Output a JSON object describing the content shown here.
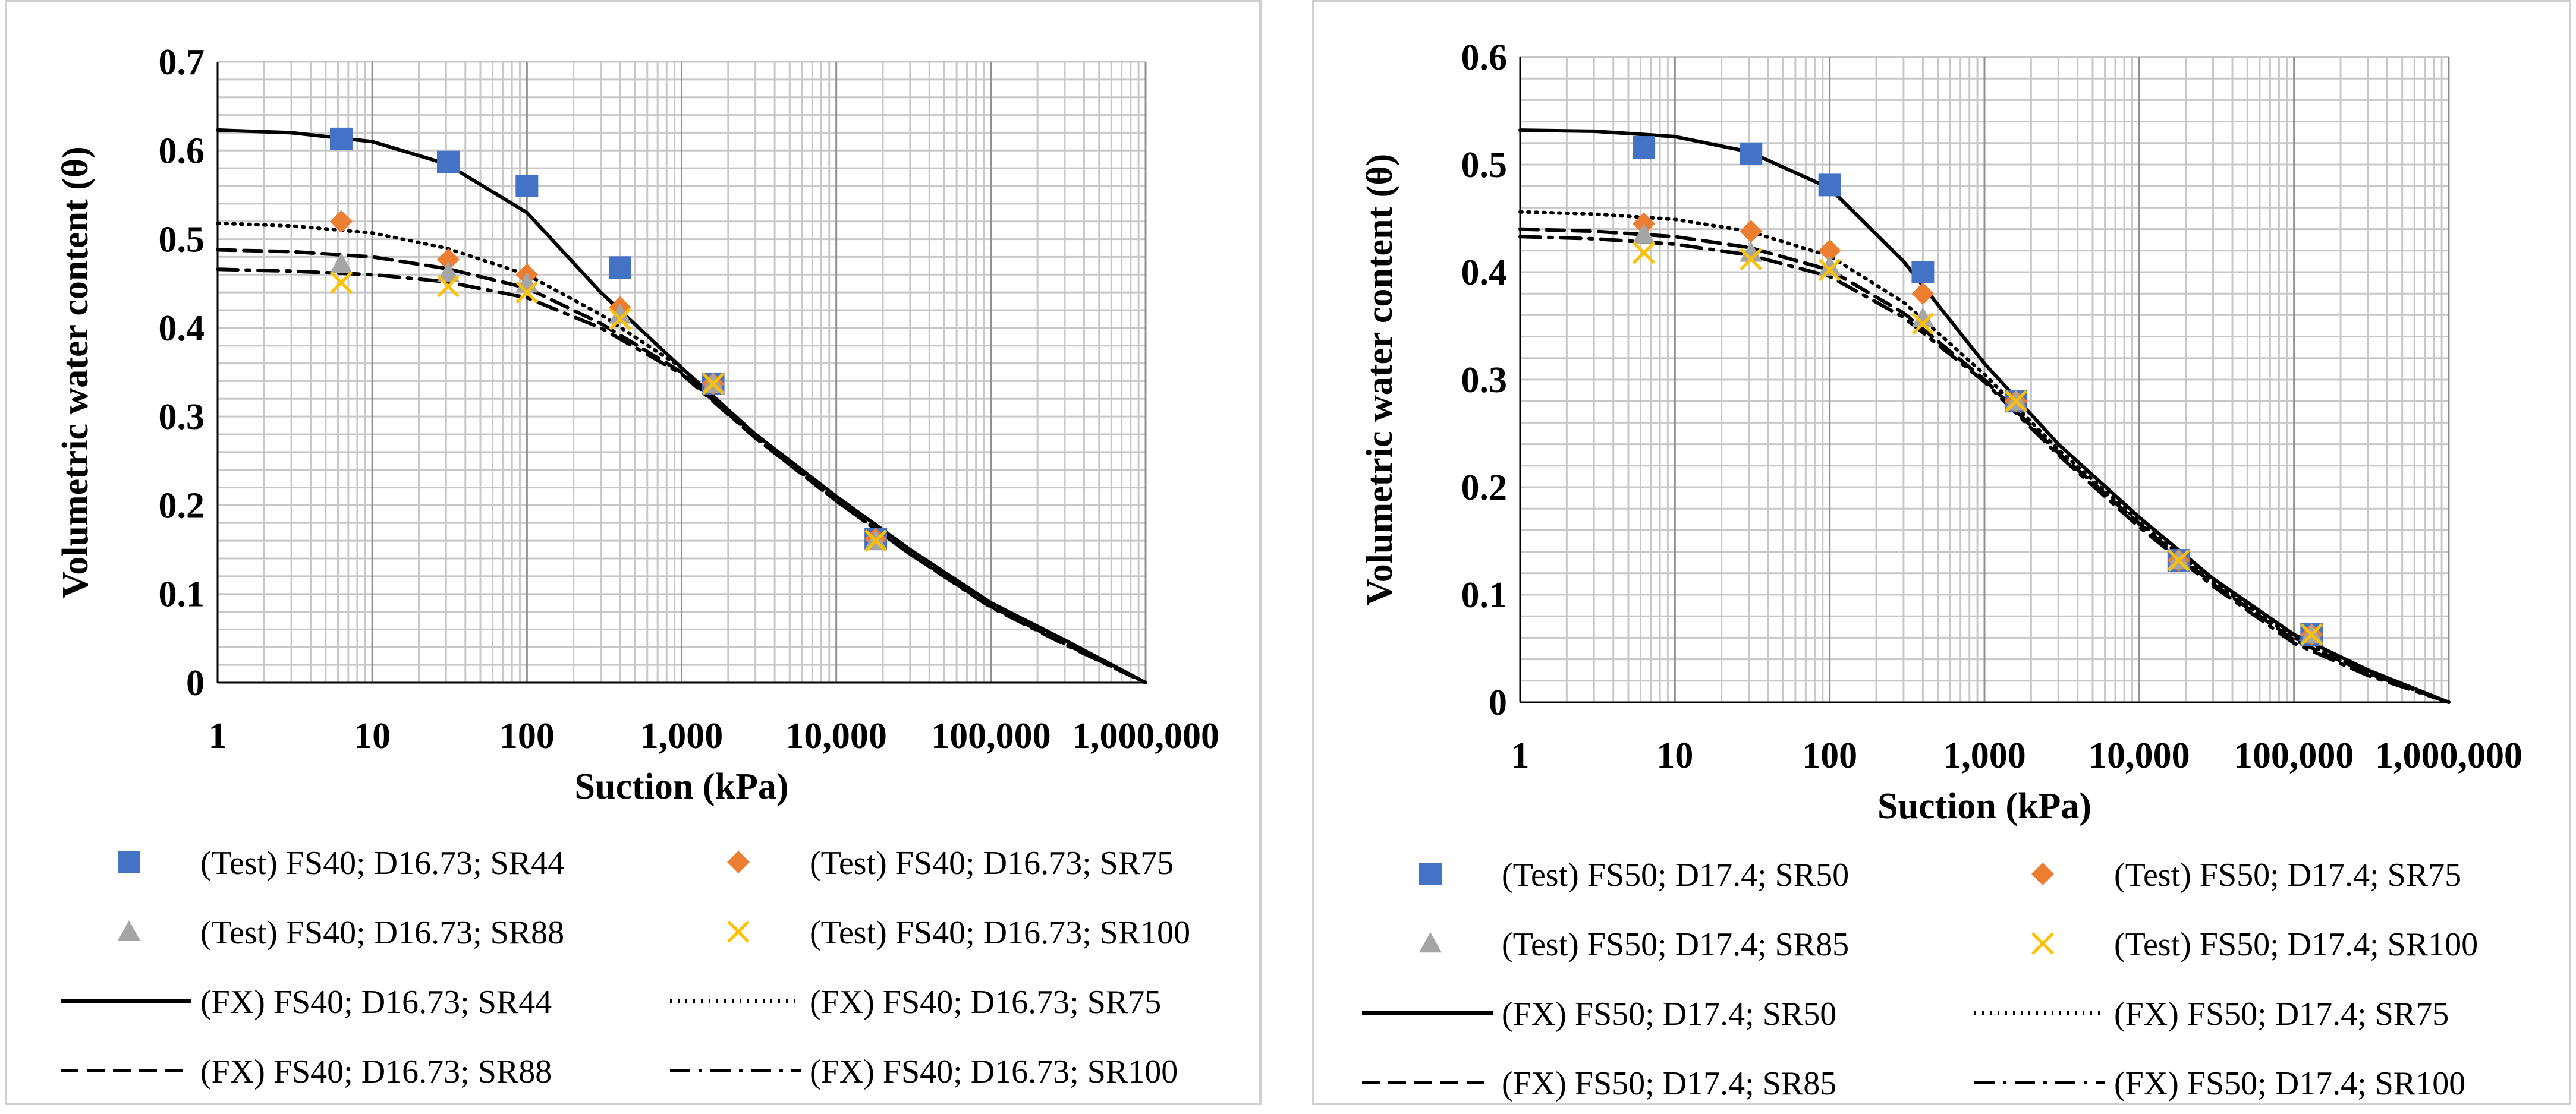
{
  "chart_data": [
    {
      "type": "scatter",
      "title": "",
      "xlabel": "Suction  (kPa)",
      "ylabel": "Volumetric water content (θ)",
      "xscale": "log",
      "xlim": [
        1,
        1000000
      ],
      "ylim": [
        0,
        0.7
      ],
      "xticks": [
        "1",
        "10",
        "100",
        "1,000",
        "10,000",
        "100,000",
        "1,000,000"
      ],
      "yticks": [
        "0",
        "0.1",
        "0.2",
        "0.3",
        "0.4",
        "0.5",
        "0.6",
        "0.7"
      ],
      "grid": true,
      "legend_position": "bottom",
      "series": [
        {
          "name": "(Test) FS40; D16.73; SR44",
          "kind": "marker",
          "marker": "square",
          "color": "#4472C4",
          "x": [
            6.3,
            31,
            100,
            400,
            1600,
            18000
          ],
          "y": [
            0.613,
            0.587,
            0.56,
            0.468,
            0.337,
            0.162
          ]
        },
        {
          "name": "(Test) FS40; D16.73; SR75",
          "kind": "marker",
          "marker": "diamond",
          "color": "#ED7D31",
          "x": [
            6.3,
            31,
            100,
            400,
            1600,
            18000
          ],
          "y": [
            0.52,
            0.477,
            0.46,
            0.423,
            0.337,
            0.162
          ]
        },
        {
          "name": "(Test) FS40; D16.73; SR88",
          "kind": "marker",
          "marker": "triangle",
          "color": "#A5A5A5",
          "x": [
            6.3,
            31,
            100,
            400,
            1600,
            18000
          ],
          "y": [
            0.472,
            0.462,
            0.45,
            0.415,
            0.337,
            0.16
          ]
        },
        {
          "name": "(Test) FS40; D16.73; SR100",
          "kind": "marker",
          "marker": "x",
          "color": "#FFC000",
          "x": [
            6.3,
            31,
            100,
            400,
            1600,
            18000
          ],
          "y": [
            0.451,
            0.447,
            0.44,
            0.41,
            0.337,
            0.16
          ]
        },
        {
          "name": "(FX) FS40; D16.73; SR44",
          "kind": "line",
          "dash": "solid",
          "color": "#000000",
          "x": [
            1,
            3,
            10,
            30,
            100,
            300,
            1000,
            3000,
            10000,
            30000,
            100000,
            300000,
            1000000
          ],
          "y": [
            0.623,
            0.62,
            0.61,
            0.585,
            0.53,
            0.44,
            0.355,
            0.28,
            0.21,
            0.15,
            0.09,
            0.048,
            0.0
          ]
        },
        {
          "name": "(FX) FS40; D16.73; SR75",
          "kind": "line",
          "dash": "dotted",
          "color": "#000000",
          "x": [
            1,
            3,
            10,
            30,
            100,
            300,
            1000,
            3000,
            10000,
            30000,
            100000,
            300000,
            1000000
          ],
          "y": [
            0.518,
            0.515,
            0.507,
            0.49,
            0.46,
            0.415,
            0.355,
            0.278,
            0.205,
            0.145,
            0.087,
            0.045,
            0.0
          ]
        },
        {
          "name": "(FX) FS40; D16.73; SR88",
          "kind": "line",
          "dash": "dashed",
          "color": "#000000",
          "x": [
            1,
            3,
            10,
            30,
            100,
            300,
            1000,
            3000,
            10000,
            30000,
            100000,
            300000,
            1000000
          ],
          "y": [
            0.488,
            0.486,
            0.48,
            0.467,
            0.445,
            0.405,
            0.35,
            0.276,
            0.205,
            0.145,
            0.086,
            0.044,
            0.0
          ]
        },
        {
          "name": "(FX) FS40; D16.73; SR100",
          "kind": "line",
          "dash": "dashdot",
          "color": "#000000",
          "x": [
            1,
            3,
            10,
            30,
            100,
            300,
            1000,
            3000,
            10000,
            30000,
            100000,
            300000,
            1000000
          ],
          "y": [
            0.466,
            0.464,
            0.46,
            0.452,
            0.434,
            0.4,
            0.348,
            0.276,
            0.205,
            0.145,
            0.085,
            0.043,
            0.0
          ]
        }
      ]
    },
    {
      "type": "scatter",
      "title": "",
      "xlabel": "Suction  (kPa)",
      "ylabel": "Volumetric water content (θ)",
      "xscale": "log",
      "xlim": [
        1,
        1000000
      ],
      "ylim": [
        0,
        0.6
      ],
      "xticks": [
        "1",
        "10",
        "100",
        "1,000",
        "10,000",
        "100,000",
        "1,000,000"
      ],
      "yticks": [
        "0",
        "0.1",
        "0.2",
        "0.3",
        "0.4",
        "0.5",
        "0.6"
      ],
      "grid": true,
      "legend_position": "bottom",
      "series": [
        {
          "name": "(Test) FS50; D17.4; SR50",
          "kind": "marker",
          "marker": "square",
          "color": "#4472C4",
          "x": [
            6.3,
            31,
            100,
            400,
            1600,
            18000,
            130000
          ],
          "y": [
            0.516,
            0.51,
            0.481,
            0.4,
            0.28,
            0.132,
            0.063
          ]
        },
        {
          "name": "(Test) FS50; D17.4; SR75",
          "kind": "marker",
          "marker": "diamond",
          "color": "#ED7D31",
          "x": [
            6.3,
            31,
            100,
            400,
            1600,
            18000,
            130000
          ],
          "y": [
            0.445,
            0.438,
            0.42,
            0.38,
            0.28,
            0.132,
            0.063
          ]
        },
        {
          "name": "(Test) FS50; D17.4; SR85",
          "kind": "marker",
          "marker": "triangle",
          "color": "#A5A5A5",
          "x": [
            6.3,
            31,
            100,
            400,
            1600,
            18000,
            130000
          ],
          "y": [
            0.435,
            0.418,
            0.405,
            0.357,
            0.28,
            0.132,
            0.063
          ]
        },
        {
          "name": "(Test) FS50; D17.4; SR100",
          "kind": "marker",
          "marker": "x",
          "color": "#FFC000",
          "x": [
            6.3,
            31,
            100,
            400,
            1600,
            18000,
            130000
          ],
          "y": [
            0.418,
            0.412,
            0.402,
            0.352,
            0.28,
            0.132,
            0.063
          ]
        },
        {
          "name": "(FX) FS50; D17.4; SR50",
          "kind": "line",
          "dash": "solid",
          "color": "#000000",
          "x": [
            1,
            3,
            10,
            30,
            100,
            300,
            1000,
            3000,
            10000,
            30000,
            100000,
            300000,
            1000000
          ],
          "y": [
            0.532,
            0.531,
            0.526,
            0.512,
            0.478,
            0.41,
            0.315,
            0.24,
            0.172,
            0.115,
            0.063,
            0.03,
            0.0
          ]
        },
        {
          "name": "(FX) FS50; D17.4; SR75",
          "kind": "line",
          "dash": "dotted",
          "color": "#000000",
          "x": [
            1,
            3,
            10,
            30,
            100,
            300,
            1000,
            3000,
            10000,
            30000,
            100000,
            300000,
            1000000
          ],
          "y": [
            0.456,
            0.454,
            0.449,
            0.438,
            0.415,
            0.372,
            0.305,
            0.235,
            0.168,
            0.112,
            0.06,
            0.028,
            0.0
          ]
        },
        {
          "name": "(FX) FS50; D17.4; SR85",
          "kind": "line",
          "dash": "dashed",
          "color": "#000000",
          "x": [
            1,
            3,
            10,
            30,
            100,
            300,
            1000,
            3000,
            10000,
            30000,
            100000,
            300000,
            1000000
          ],
          "y": [
            0.44,
            0.438,
            0.433,
            0.423,
            0.402,
            0.362,
            0.3,
            0.232,
            0.166,
            0.11,
            0.058,
            0.027,
            0.0
          ]
        },
        {
          "name": "(FX) FS50; D17.4; SR100",
          "kind": "line",
          "dash": "dashdot",
          "color": "#000000",
          "x": [
            1,
            3,
            10,
            30,
            100,
            300,
            1000,
            3000,
            10000,
            30000,
            100000,
            300000,
            1000000
          ],
          "y": [
            0.433,
            0.431,
            0.426,
            0.416,
            0.396,
            0.358,
            0.298,
            0.23,
            0.163,
            0.108,
            0.055,
            0.025,
            0.0
          ]
        }
      ]
    }
  ]
}
